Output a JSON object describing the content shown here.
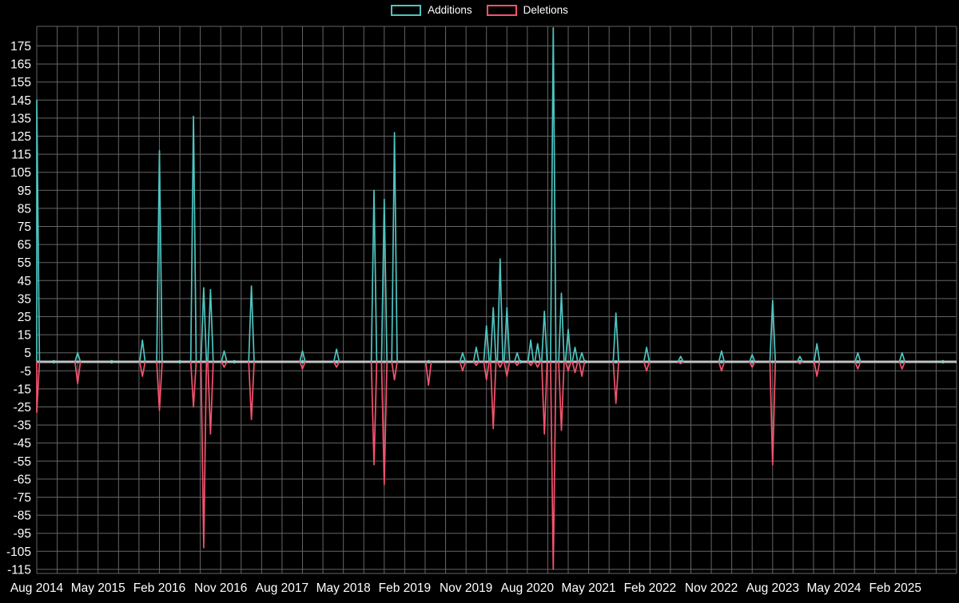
{
  "chart_data": {
    "type": "line",
    "title": "",
    "xlabel": "",
    "ylabel": "",
    "background_color": "#000000",
    "text_color": "#ffffff",
    "grid_color": "#a8a8a8",
    "zero_line_color": "#bfc5c5",
    "marker_color": "#7fd4cd",
    "legend": [
      {
        "label": "Additions",
        "color": "#4ec5c1"
      },
      {
        "label": "Deletions",
        "color": "#f4536e"
      }
    ],
    "legend_position": "top-center",
    "grid": "on",
    "y_axis": {
      "range": [
        -121,
        186
      ],
      "ticks": [
        175,
        165,
        155,
        145,
        135,
        125,
        115,
        105,
        95,
        85,
        75,
        65,
        55,
        45,
        35,
        25,
        15,
        5,
        -5,
        -15,
        -25,
        -35,
        -45,
        -55,
        -65,
        -75,
        -85,
        -95,
        -105,
        -115
      ]
    },
    "x_axis": {
      "grid_step_months": 3,
      "months_max": 135,
      "ticks": [
        {
          "m": 0,
          "label": "Aug 2014"
        },
        {
          "m": 9,
          "label": "May 2015"
        },
        {
          "m": 18,
          "label": "Feb 2016"
        },
        {
          "m": 27,
          "label": "Nov 2016"
        },
        {
          "m": 36,
          "label": "Aug 2017"
        },
        {
          "m": 45,
          "label": "May 2018"
        },
        {
          "m": 54,
          "label": "Feb 2019"
        },
        {
          "m": 63,
          "label": "Nov 2019"
        },
        {
          "m": 72,
          "label": "Aug 2020"
        },
        {
          "m": 81,
          "label": "May 2021"
        },
        {
          "m": 90,
          "label": "Feb 2022"
        },
        {
          "m": 99,
          "label": "Nov 2022"
        },
        {
          "m": 108,
          "label": "Aug 2023"
        },
        {
          "m": 117,
          "label": "May 2024"
        },
        {
          "m": 126,
          "label": "Feb 2025"
        }
      ]
    },
    "series": [
      {
        "name": "Additions",
        "color": "#4ec5c1",
        "points": [
          [
            0,
            145
          ],
          [
            6,
            5
          ],
          [
            15.5,
            12
          ],
          [
            18,
            117
          ],
          [
            23,
            136
          ],
          [
            24.5,
            41
          ],
          [
            25.5,
            40
          ],
          [
            27.5,
            6
          ],
          [
            31.5,
            42
          ],
          [
            39,
            6
          ],
          [
            44,
            7
          ],
          [
            49.5,
            95
          ],
          [
            51,
            90
          ],
          [
            52.5,
            127
          ],
          [
            62.5,
            5
          ],
          [
            64.5,
            8
          ],
          [
            66,
            20
          ],
          [
            67,
            30
          ],
          [
            68,
            57
          ],
          [
            69,
            30
          ],
          [
            70.5,
            5
          ],
          [
            72.5,
            12
          ],
          [
            73.5,
            10
          ],
          [
            74.5,
            28
          ],
          [
            75.8,
            185
          ],
          [
            77,
            38
          ],
          [
            78,
            18
          ],
          [
            79,
            8
          ],
          [
            80,
            5
          ],
          [
            85,
            27
          ],
          [
            89.5,
            8
          ],
          [
            94.5,
            3
          ],
          [
            100.5,
            6
          ],
          [
            105,
            4
          ],
          [
            108,
            34
          ],
          [
            112,
            3
          ],
          [
            114.5,
            10
          ],
          [
            120.5,
            5
          ],
          [
            127,
            5
          ]
        ]
      },
      {
        "name": "Deletions",
        "color": "#f4536e",
        "points": [
          [
            0,
            -28
          ],
          [
            6,
            -12
          ],
          [
            15.5,
            -8
          ],
          [
            18,
            -27
          ],
          [
            23,
            -25
          ],
          [
            24.5,
            -103
          ],
          [
            25.5,
            -40
          ],
          [
            27.5,
            -3
          ],
          [
            31.5,
            -32
          ],
          [
            39,
            -4
          ],
          [
            44,
            -3
          ],
          [
            49.5,
            -57
          ],
          [
            51,
            -68
          ],
          [
            52.5,
            -10
          ],
          [
            57.5,
            -13
          ],
          [
            62.5,
            -5
          ],
          [
            64.5,
            -2
          ],
          [
            66,
            -10
          ],
          [
            67,
            -37
          ],
          [
            68,
            -3
          ],
          [
            69,
            -8
          ],
          [
            70.5,
            -2
          ],
          [
            72.5,
            -2
          ],
          [
            73.5,
            -3
          ],
          [
            74.5,
            -40
          ],
          [
            75.8,
            -115
          ],
          [
            77,
            -38
          ],
          [
            78,
            -5
          ],
          [
            79,
            -6
          ],
          [
            80,
            -8
          ],
          [
            85,
            -23
          ],
          [
            89.5,
            -5
          ],
          [
            94.5,
            -1
          ],
          [
            100.5,
            -5
          ],
          [
            105,
            -3
          ],
          [
            108,
            -57
          ],
          [
            112,
            -1
          ],
          [
            114.5,
            -8
          ],
          [
            120.5,
            -4
          ],
          [
            127,
            -4
          ]
        ]
      }
    ],
    "zero_markers_months": [
      2.5,
      11,
      21,
      29,
      39,
      44,
      57.5,
      62.5,
      71,
      80.5,
      85,
      94.5,
      100.5,
      105,
      112,
      120.5,
      127,
      133
    ]
  }
}
